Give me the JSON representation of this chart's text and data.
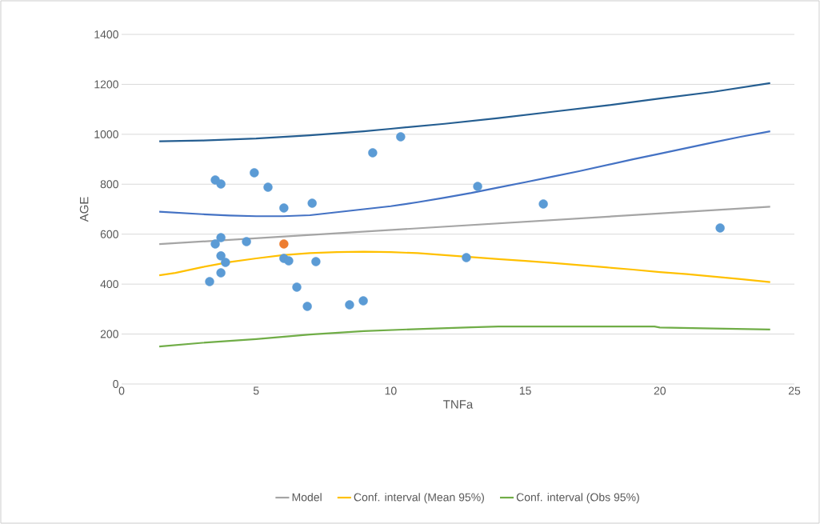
{
  "chart_data": {
    "type": "scatter",
    "xlabel": "TNFa",
    "ylabel": "AGE",
    "xlim": [
      0,
      25
    ],
    "xticks": [
      0,
      5,
      10,
      15,
      20,
      25
    ],
    "ylim": [
      0,
      1400
    ],
    "yticks": [
      0,
      200,
      400,
      600,
      800,
      1000,
      1200,
      1400
    ],
    "grid": "y",
    "legend": "bottom",
    "series": [
      {
        "marker": "circle",
        "color": "#5b9bd5",
        "x": [
          3.27,
          3.48,
          3.69,
          3.48,
          3.69,
          3.69,
          3.86,
          3.69,
          4.64,
          4.93,
          5.44,
          6.03,
          6.03,
          6.21,
          6.51,
          6.9,
          7.08,
          7.22,
          8.47,
          8.98,
          9.33,
          10.37,
          12.81,
          13.23,
          15.67,
          22.24
        ],
        "values": [
          410,
          817,
          801,
          561,
          586,
          513,
          487,
          445,
          570,
          846,
          788,
          705,
          503,
          493,
          388,
          311,
          724,
          490,
          317,
          333,
          926,
          990,
          506,
          791,
          721,
          625
        ]
      },
      {
        "marker": "circle",
        "color": "#ed7d31",
        "x": [
          6.03
        ],
        "values": [
          561
        ]
      },
      {
        "type": "line",
        "name": "Model",
        "color": "#a5a5a5",
        "marker": "none",
        "line_style": "solid",
        "x": [
          1.4,
          24.1
        ],
        "values": [
          560,
          710
        ]
      },
      {
        "type": "line",
        "color": "#4472c4",
        "marker": "none",
        "line_style": "solid",
        "x": [
          1.4,
          3,
          4,
          5,
          6,
          7,
          8,
          9,
          10,
          11,
          12,
          13,
          14,
          15,
          16,
          17,
          18,
          19,
          20,
          21,
          22,
          23,
          24.1
        ],
        "values": [
          690,
          680,
          675,
          672,
          672,
          676,
          688,
          700,
          712,
          728,
          746,
          765,
          787,
          808,
          830,
          852,
          876,
          900,
          922,
          945,
          968,
          990,
          1012
        ]
      },
      {
        "type": "line",
        "name": "Conf. interval (Mean 95%)",
        "color": "#ffc000",
        "marker": "none",
        "line_style": "solid",
        "x": [
          1.4,
          2,
          3,
          4,
          5,
          6,
          7,
          8,
          9,
          10,
          11,
          12,
          13,
          14,
          15,
          16,
          17,
          18,
          19,
          20,
          21,
          22,
          23,
          24.1
        ],
        "values": [
          435,
          445,
          468,
          488,
          503,
          516,
          524,
          528,
          530,
          528,
          524,
          516,
          508,
          500,
          493,
          485,
          476,
          467,
          458,
          448,
          440,
          430,
          420,
          408
        ]
      },
      {
        "type": "line",
        "color": "#255e91",
        "marker": "none",
        "line_style": "solid",
        "x": [
          1.4,
          3,
          5,
          7,
          9,
          10,
          12,
          14,
          16,
          18,
          20,
          22,
          24.1
        ],
        "values": [
          972,
          975,
          983,
          996,
          1012,
          1022,
          1042,
          1065,
          1090,
          1115,
          1143,
          1170,
          1205
        ]
      },
      {
        "type": "line",
        "name": "Conf. interval (Obs 95%)",
        "color": "#70ad47",
        "marker": "none",
        "line_style": "solid",
        "x": [
          1.4,
          3,
          5,
          7,
          9,
          11,
          13,
          14,
          16,
          18,
          19.8,
          20,
          22,
          24.1
        ],
        "values": [
          150,
          165,
          180,
          198,
          212,
          220,
          227,
          230,
          230,
          230,
          230,
          226,
          222,
          218
        ]
      }
    ]
  }
}
